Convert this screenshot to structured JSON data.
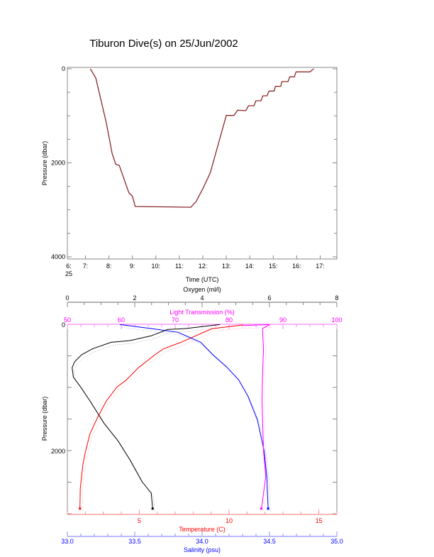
{
  "title": "Tiburon Dive(s) on 25/Jun/2002",
  "chart_data": [
    {
      "type": "line",
      "title": "Tiburon Dive(s) on 25/Jun/2002",
      "xlabel": "Time (UTC)",
      "ylabel": "Pressure (dbar)",
      "xlim": [
        6.23,
        17.71
      ],
      "ylim": [
        0,
        4000
      ],
      "y_inverted": true,
      "x_ticks": [
        "6:",
        "7:",
        "8:",
        "9:",
        "10:",
        "11:",
        "12:",
        "13:",
        "14:",
        "15:",
        "16:",
        "17:"
      ],
      "x_tick_values": [
        6,
        7,
        8,
        9,
        10,
        11,
        12,
        13,
        14,
        15,
        16,
        17
      ],
      "x_date_label": "25",
      "y_ticks": [
        0,
        2000,
        4000
      ],
      "color": "#b03030",
      "series": [
        {
          "x": [
            7.21,
            7.44,
            7.89,
            8.14,
            8.29,
            8.44,
            8.85,
            9.0,
            9.12,
            11.49,
            11.72,
            12.02,
            12.32,
            13.0,
            13.33,
            13.48,
            13.83,
            13.95,
            14.18,
            14.26,
            14.48,
            14.56,
            14.74,
            14.82,
            15.04,
            15.09,
            15.32,
            15.37,
            15.63,
            15.7,
            15.9,
            15.97,
            16.57,
            16.65,
            16.73
          ],
          "y": [
            0,
            196,
            1147,
            1806,
            2030,
            2055,
            2636,
            2710,
            2928,
            2945,
            2820,
            2530,
            2208,
            991,
            991,
            880,
            890,
            785,
            785,
            679,
            679,
            574,
            574,
            473,
            473,
            372,
            372,
            272,
            272,
            171,
            171,
            65,
            65,
            25,
            0
          ]
        }
      ]
    },
    {
      "type": "line",
      "ylabel": "Pressure (dbar)",
      "ylim": [
        0,
        3010
      ],
      "y_inverted": true,
      "y_ticks": [
        0,
        2000
      ],
      "axes": {
        "oxygen": {
          "label": "Oxygen (ml/l)",
          "lim": [
            0,
            8
          ],
          "ticks": [
            0,
            2,
            4,
            6,
            8
          ],
          "color": "#000000"
        },
        "light": {
          "label": "Light Transmission (%)",
          "lim": [
            50,
            100
          ],
          "ticks": [
            50,
            60,
            70,
            80,
            90,
            100
          ],
          "color": "#ff00ff"
        },
        "temperature": {
          "label": "Temperature (C)",
          "lim": [
            1,
            16
          ],
          "ticks": [
            5,
            10,
            15
          ],
          "color": "#ff0000"
        },
        "salinity": {
          "label": "Salinity (psu)",
          "lim": [
            33.0,
            35.0
          ],
          "ticks": [
            "33.0",
            "33.5",
            "34.0",
            "34.5",
            "35.0"
          ],
          "color": "#0000ff"
        }
      },
      "series": [
        {
          "axis": "temperature",
          "color": "#ff0000",
          "x": [
            10.8,
            9.04,
            7.32,
            6.34,
            5.87,
            4.95,
            4.23,
            3.77,
            3.17,
            2.65,
            2.25,
            1.99,
            1.86,
            1.72,
            1.7
          ],
          "y": [
            10,
            71,
            285,
            390,
            483,
            689,
            895,
            989,
            1213,
            1494,
            1738,
            2037,
            2225,
            2599,
            2918
          ]
        },
        {
          "axis": "salinity",
          "color": "#0000ff",
          "x": [
            33.39,
            33.63,
            33.82,
            33.99,
            34.08,
            34.18,
            34.27,
            34.34,
            34.41,
            34.46,
            34.48,
            34.49
          ],
          "y": [
            5,
            71,
            127,
            285,
            483,
            670,
            876,
            1138,
            1513,
            2000,
            2412,
            2918
          ]
        },
        {
          "axis": "oxygen",
          "color": "#000000",
          "x": [
            4.53,
            3.47,
            2.98,
            2.49,
            1.86,
            1.3,
            0.74,
            0.42,
            0.21,
            0.14,
            0.18,
            0.39,
            0.67,
            1.09,
            1.51,
            1.86,
            2.21,
            2.49,
            2.53
          ],
          "y": [
            5,
            71,
            82,
            183,
            258,
            285,
            390,
            483,
            596,
            689,
            839,
            989,
            1213,
            1569,
            1850,
            2150,
            2487,
            2674,
            2918
          ]
        },
        {
          "axis": "light",
          "color": "#ff00ff",
          "x": [
            82.7,
            87.5,
            86.2,
            86.4,
            86.2,
            86.1,
            86.4,
            86.8,
            86.2,
            86.0
          ],
          "y": [
            20,
            5,
            71,
            390,
            839,
            1213,
            2000,
            2412,
            2800,
            2918
          ]
        }
      ]
    }
  ]
}
